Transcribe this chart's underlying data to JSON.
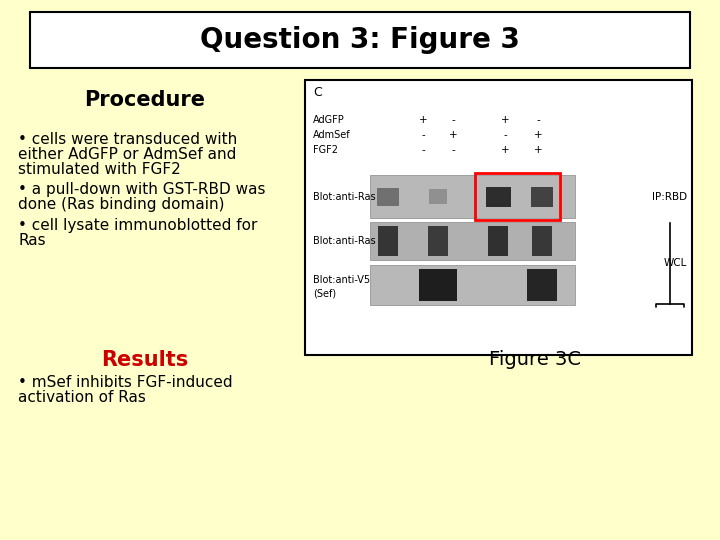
{
  "background_color": "#ffffcc",
  "title_box_color": "#ffffff",
  "title_text": "Question 3: Figure 3",
  "title_fontsize": 20,
  "title_bold": true,
  "title_box_border": "#000000",
  "procedure_heading": "Procedure",
  "procedure_heading_fontsize": 15,
  "procedure_heading_bold": true,
  "bullet1_line1": "• cells were transduced with",
  "bullet1_line2": "either AdGFP or AdmSef and",
  "bullet1_line3": "stimulated with FGF2",
  "bullet2_line1": "• a pull-down with GST-RBD was",
  "bullet2_line2": "done (Ras binding domain)",
  "bullet3_line1": "• cell lysate immunoblotted for",
  "bullet3_line2": "Ras",
  "bullet_fontsize": 11,
  "results_heading": "Results",
  "results_heading_fontsize": 15,
  "results_heading_color": "#cc0000",
  "results_bullet_line1": "• mSef inhibits FGF-induced",
  "results_bullet_line2": "activation of Ras",
  "results_bullet_fontsize": 11,
  "figure_caption": "Figure 3C",
  "figure_caption_fontsize": 14,
  "text_color": "#000000",
  "panel_label": "C",
  "row_labels": [
    "AdGFP",
    "AdmSef",
    "FGF2"
  ],
  "col_signs": [
    [
      "+",
      "-",
      "+",
      "-"
    ],
    [
      "-",
      "+",
      "-",
      "+"
    ],
    [
      "-",
      "-",
      "+",
      "+"
    ]
  ],
  "blot_labels": [
    "Blot:anti-Ras",
    "Blot:anti-Ras",
    "Blot:anti-V5\n(Sef)"
  ],
  "side_labels": [
    "IP:RBD",
    "",
    ""
  ],
  "wcl_label": "WCL"
}
